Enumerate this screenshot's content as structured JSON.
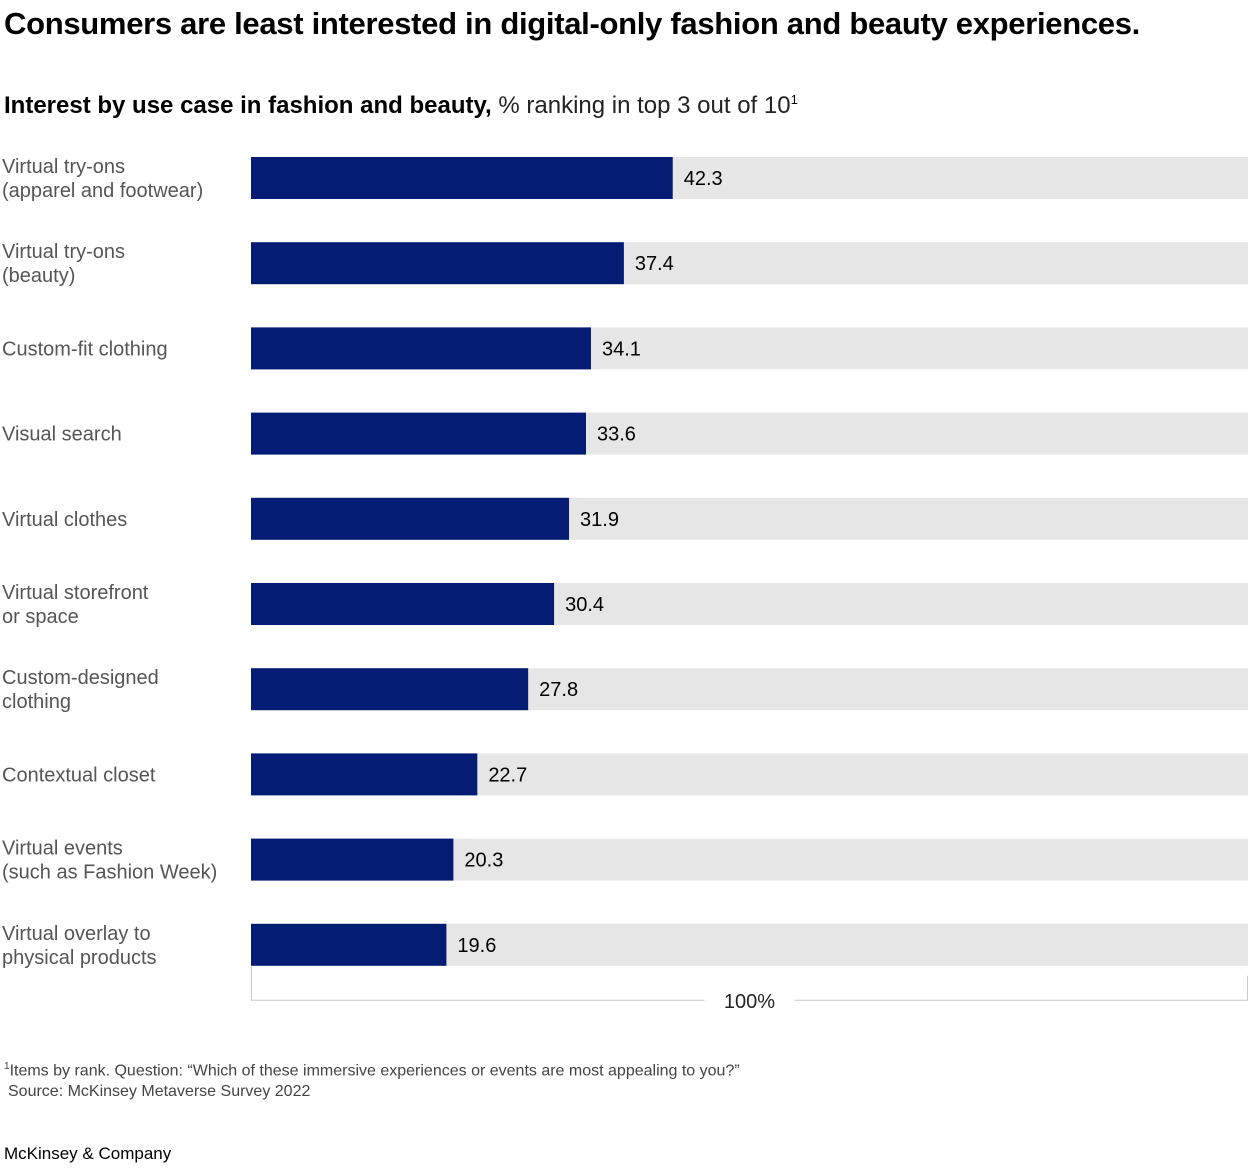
{
  "title": "Consumers are least interested in digital-only fashion and beauty experiences.",
  "subtitle_bold": "Interest by use case in fashion and beauty,",
  "subtitle_normal": "% ranking in top 3 out of 10",
  "subtitle_sup": "1",
  "footnote_sup": "1",
  "footnote_text": "Items by rank. Question: “Which of these immersive experiences or events are most appealing to you?”",
  "source_text": "Source: McKinsey Metaverse Survey 2022",
  "brand": "McKinsey & Company",
  "colors": {
    "bar": "#051c75",
    "track": "#e6e6e6",
    "axis": "#c8c8c8"
  },
  "chart_data": {
    "type": "bar",
    "orientation": "horizontal",
    "categories": [
      [
        "Virtual try-ons",
        "(apparel and footwear)"
      ],
      [
        "Virtual try-ons",
        "(beauty)"
      ],
      [
        "Custom-fit clothing"
      ],
      [
        "Visual search"
      ],
      [
        "Virtual clothes"
      ],
      [
        "Virtual storefront",
        "or space"
      ],
      [
        "Custom-designed",
        "clothing"
      ],
      [
        "Contextual closet"
      ],
      [
        "Virtual events",
        "(such as Fashion Week)"
      ],
      [
        "Virtual overlay to",
        "physical products"
      ]
    ],
    "values": [
      42.3,
      37.4,
      34.1,
      33.6,
      31.9,
      30.4,
      27.8,
      22.7,
      20.3,
      19.6
    ],
    "value_labels": [
      "42.3",
      "37.4",
      "34.1",
      "33.6",
      "31.9",
      "30.4",
      "27.8",
      "22.7",
      "20.3",
      "19.6"
    ],
    "xlim": [
      0,
      100
    ],
    "axis_label": "100%",
    "grid": false,
    "legend": "none"
  }
}
